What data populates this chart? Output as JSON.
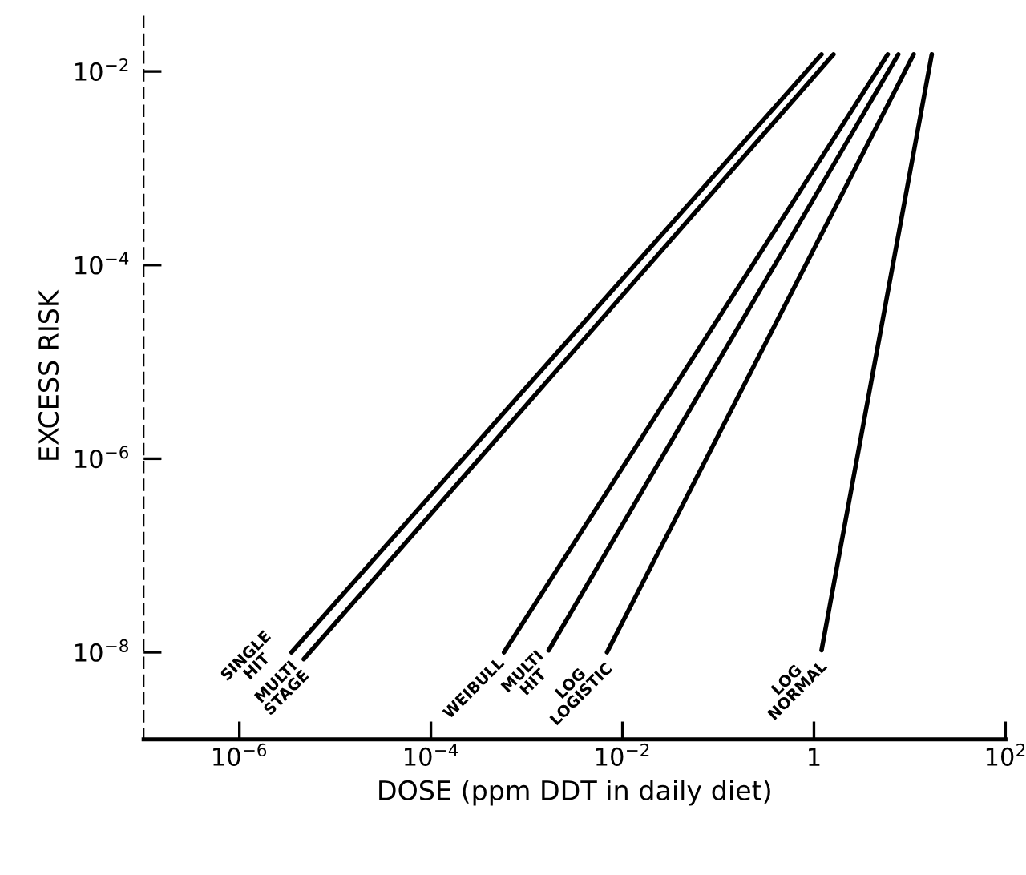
{
  "chart_data": {
    "type": "line",
    "xlabel": "DOSE (ppm DDT in daily diet)",
    "ylabel": "EXCESS RISK",
    "log": "xy",
    "grid": false,
    "legend": false,
    "marker": "none",
    "line_style": "solid",
    "xlim": [
      1e-07,
      100
    ],
    "ylim": [
      1.26e-09,
      0.04
    ],
    "xticks": [
      {
        "value": 1e-06,
        "label": "10$^{−6}$"
      },
      {
        "value": 0.0001,
        "label": "10$^{−4}$"
      },
      {
        "value": 0.01,
        "label": "10$^{−2}$"
      },
      1,
      {
        "value": 100,
        "label": "10$^{2}$"
      }
    ],
    "yticks": [
      {
        "value": 0.01,
        "label": "10$^{−2}$"
      },
      {
        "value": 0.0001,
        "label": "10$^{−4}$"
      },
      {
        "value": 1e-06,
        "label": "10$^{−6}$"
      },
      {
        "value": 1e-08,
        "label": "10$^{−8}$"
      }
    ],
    "series": [
      {
        "name": "SINGLE\nHIT",
        "color": "#000000",
        "x": [
          3.5e-06,
          1.2
        ],
        "values": [
          1e-08,
          0.015
        ]
      },
      {
        "name": "MULTI\nSTAGE",
        "color": "#000000",
        "x": [
          4.7e-06,
          1.6
        ],
        "values": [
          8.5e-09,
          0.015
        ]
      },
      {
        "name": "WEIBULL",
        "color": "#000000",
        "x": [
          0.00058,
          5.9
        ],
        "values": [
          1e-08,
          0.015
        ]
      },
      {
        "name": "MULTI\nHIT",
        "color": "#000000",
        "x": [
          0.0017,
          7.6
        ],
        "values": [
          1.05e-08,
          0.015
        ]
      },
      {
        "name": "LOG\nLOGISTIC",
        "color": "#000000",
        "x": [
          0.0069,
          11
        ],
        "values": [
          1e-08,
          0.015
        ]
      },
      {
        "name": "LOG\nNORMAL",
        "color": "#000000",
        "x": [
          1.2,
          17
        ],
        "values": [
          1.05e-08,
          0.015
        ]
      }
    ]
  }
}
